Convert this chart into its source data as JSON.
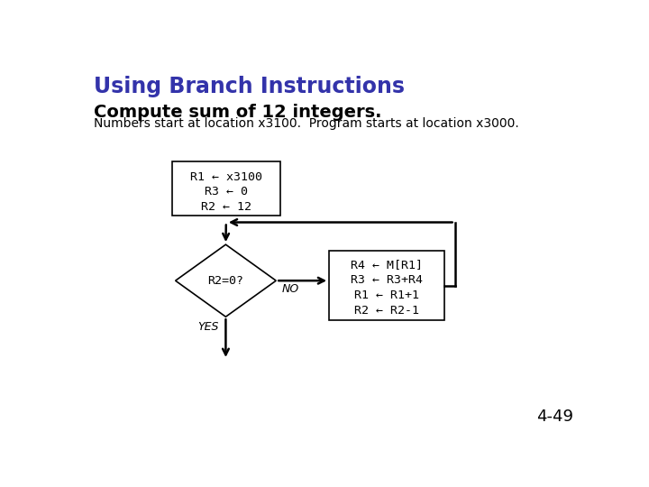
{
  "title": "Using Branch Instructions",
  "subtitle": "Compute sum of 12 integers.",
  "subtitle2": "Numbers start at location x3100.  Program starts at location x3000.",
  "title_color": "#3333aa",
  "subtitle_color": "#000000",
  "bg_color": "#ffffff",
  "page_num": "4-49",
  "init_box_text": [
    "R1 ← x3100",
    "R3 ← 0",
    "R2 ← 12"
  ],
  "diamond_text": "R2=0?",
  "action_box_text": [
    "R4 ← M[R1]",
    "R3 ← R3+R4",
    "R1 ← R1+1",
    "R2 ← R2-1"
  ],
  "no_label": "NO",
  "yes_label": "YES",
  "title_fontsize": 17,
  "subtitle_fontsize": 14,
  "subtitle2_fontsize": 10,
  "pagenum_fontsize": 13
}
